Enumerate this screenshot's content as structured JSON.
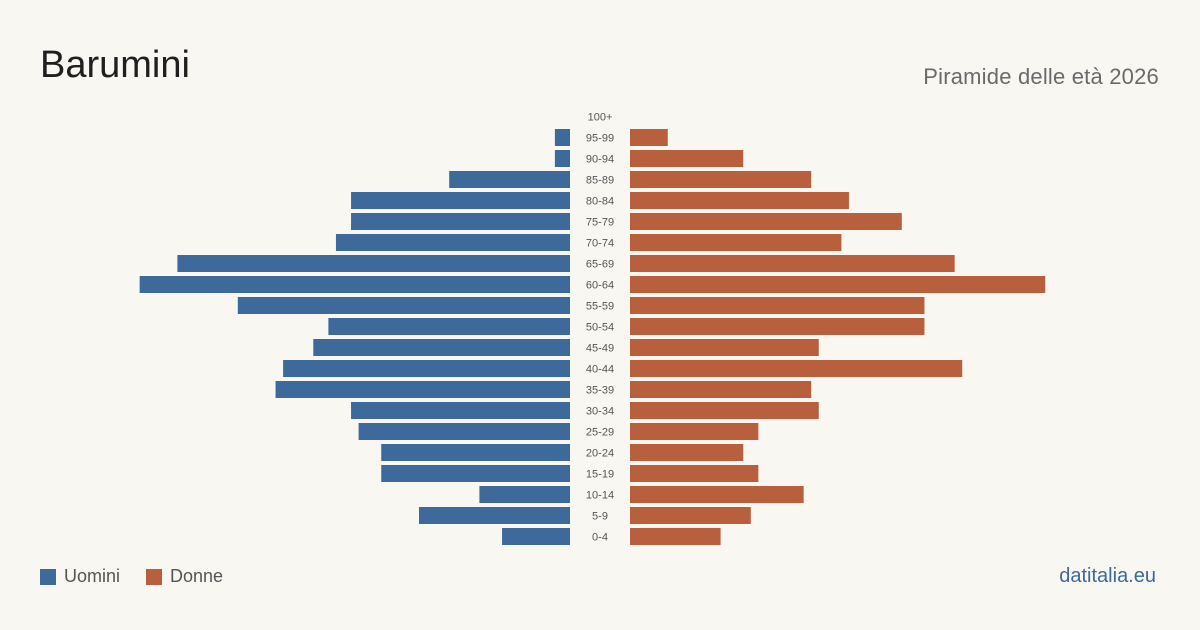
{
  "header": {
    "title": "Barumini",
    "subtitle": "Piramide delle età 2026"
  },
  "legend": {
    "men_label": "Uomini",
    "women_label": "Donne"
  },
  "brand": "datitalia.eu",
  "colors": {
    "men": "#3d6a9a",
    "women": "#b85f3e",
    "background": "#f9f7f2"
  },
  "chart_data": {
    "type": "bar",
    "orientation": "horizontal-pyramid",
    "categories": [
      "100+",
      "95-99",
      "90-94",
      "85-89",
      "80-84",
      "75-79",
      "70-74",
      "65-69",
      "60-64",
      "55-59",
      "50-54",
      "45-49",
      "40-44",
      "35-39",
      "30-34",
      "25-29",
      "20-24",
      "15-19",
      "10-14",
      "5-9",
      "0-4"
    ],
    "series": [
      {
        "name": "Uomini",
        "values": [
          0,
          2,
          2,
          16,
          29,
          29,
          31,
          52,
          57,
          44,
          32,
          34,
          38,
          39,
          29,
          28,
          25,
          25,
          12,
          20,
          9
        ]
      },
      {
        "name": "Donne",
        "values": [
          0,
          5,
          15,
          24,
          29,
          36,
          28,
          43,
          55,
          39,
          39,
          25,
          44,
          24,
          25,
          17,
          15,
          17,
          23,
          16,
          12
        ]
      }
    ],
    "xlim": [
      0,
      60
    ],
    "grid": false,
    "legend_position": "bottom-left"
  }
}
